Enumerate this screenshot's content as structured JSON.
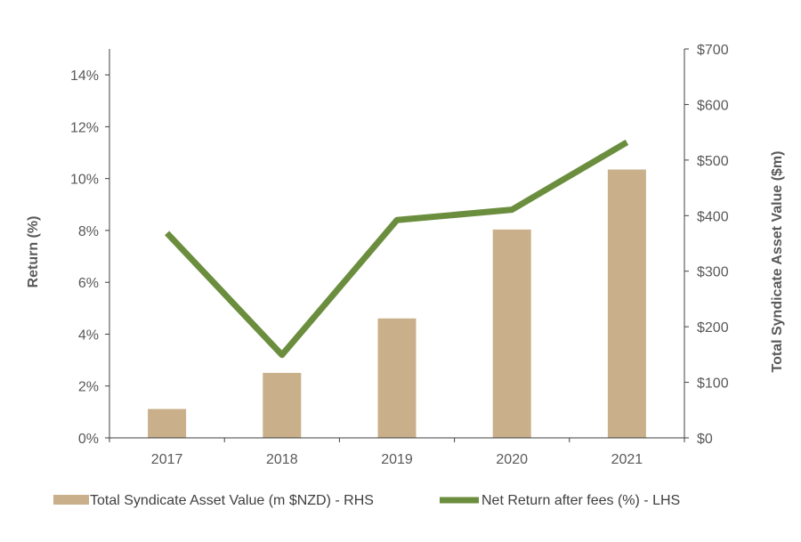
{
  "chart_data": {
    "type": "bar+line",
    "categories": [
      "2017",
      "2018",
      "2019",
      "2020",
      "2021"
    ],
    "bar_series": {
      "name": "Total Syndicate Asset Value (m $NZD) - RHS",
      "values": [
        52,
        117,
        215,
        375,
        483
      ],
      "axis": "right",
      "color": "#c9b08b"
    },
    "line_series": {
      "name": "Net Return after fees (%) - LHS",
      "values": [
        7.9,
        3.2,
        8.4,
        8.8,
        11.4
      ],
      "axis": "left",
      "color": "#6b8e3e"
    },
    "left_axis": {
      "label": "Return (%)",
      "ylim": [
        0,
        15
      ],
      "ticks": [
        "0%",
        "2%",
        "4%",
        "6%",
        "8%",
        "10%",
        "12%",
        "14%"
      ]
    },
    "right_axis": {
      "label": "Total Syndicate Asset Value ($m)",
      "ylim": [
        0,
        700
      ],
      "ticks": [
        "$0",
        "$100",
        "$200",
        "$300",
        "$400",
        "$500",
        "$600",
        "$700"
      ]
    },
    "grid": false,
    "legend_position": "bottom"
  }
}
